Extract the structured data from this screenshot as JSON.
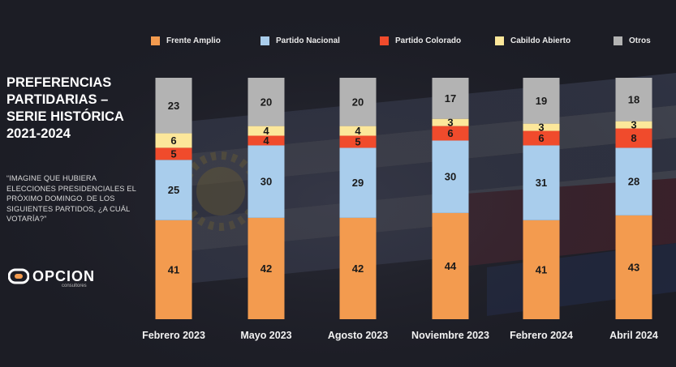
{
  "title_lines": [
    "PREFERENCIAS",
    "PARTIDARIAS –",
    "SERIE HISTÓRICA",
    "2021-2024"
  ],
  "question": "“IMAGINE QUE HUBIERA ELECCIONES PRESIDENCIALES EL PRÓXIMO DOMINGO. DE LOS SIGUIENTES PARTIDOS, ¿A CUÁL VOTARÍA?”",
  "logo": {
    "text": "OPCION",
    "subtext": "consultores"
  },
  "chart_data": {
    "type": "bar",
    "stacked": true,
    "categories": [
      "Febrero 2023",
      "Mayo 2023",
      "Agosto 2023",
      "Noviembre 2023",
      "Febrero 2024",
      "Abril 2024"
    ],
    "series": [
      {
        "name": "Frente Amplio",
        "color": "#f39b4f",
        "values": [
          41,
          42,
          42,
          44,
          41,
          43
        ]
      },
      {
        "name": "Partido Nacional",
        "color": "#a9cdec",
        "values": [
          25,
          30,
          29,
          30,
          31,
          28
        ]
      },
      {
        "name": "Partido Colorado",
        "color": "#f04b2c",
        "values": [
          5,
          4,
          5,
          6,
          6,
          8
        ]
      },
      {
        "name": "Cabildo Abierto",
        "color": "#fce79a",
        "values": [
          6,
          4,
          4,
          3,
          3,
          3
        ]
      },
      {
        "name": "Otros",
        "color": "#b3b3b3",
        "values": [
          23,
          20,
          20,
          17,
          19,
          18
        ]
      }
    ],
    "ylim": [
      0,
      100
    ],
    "legend_position": "top",
    "grid": false
  }
}
